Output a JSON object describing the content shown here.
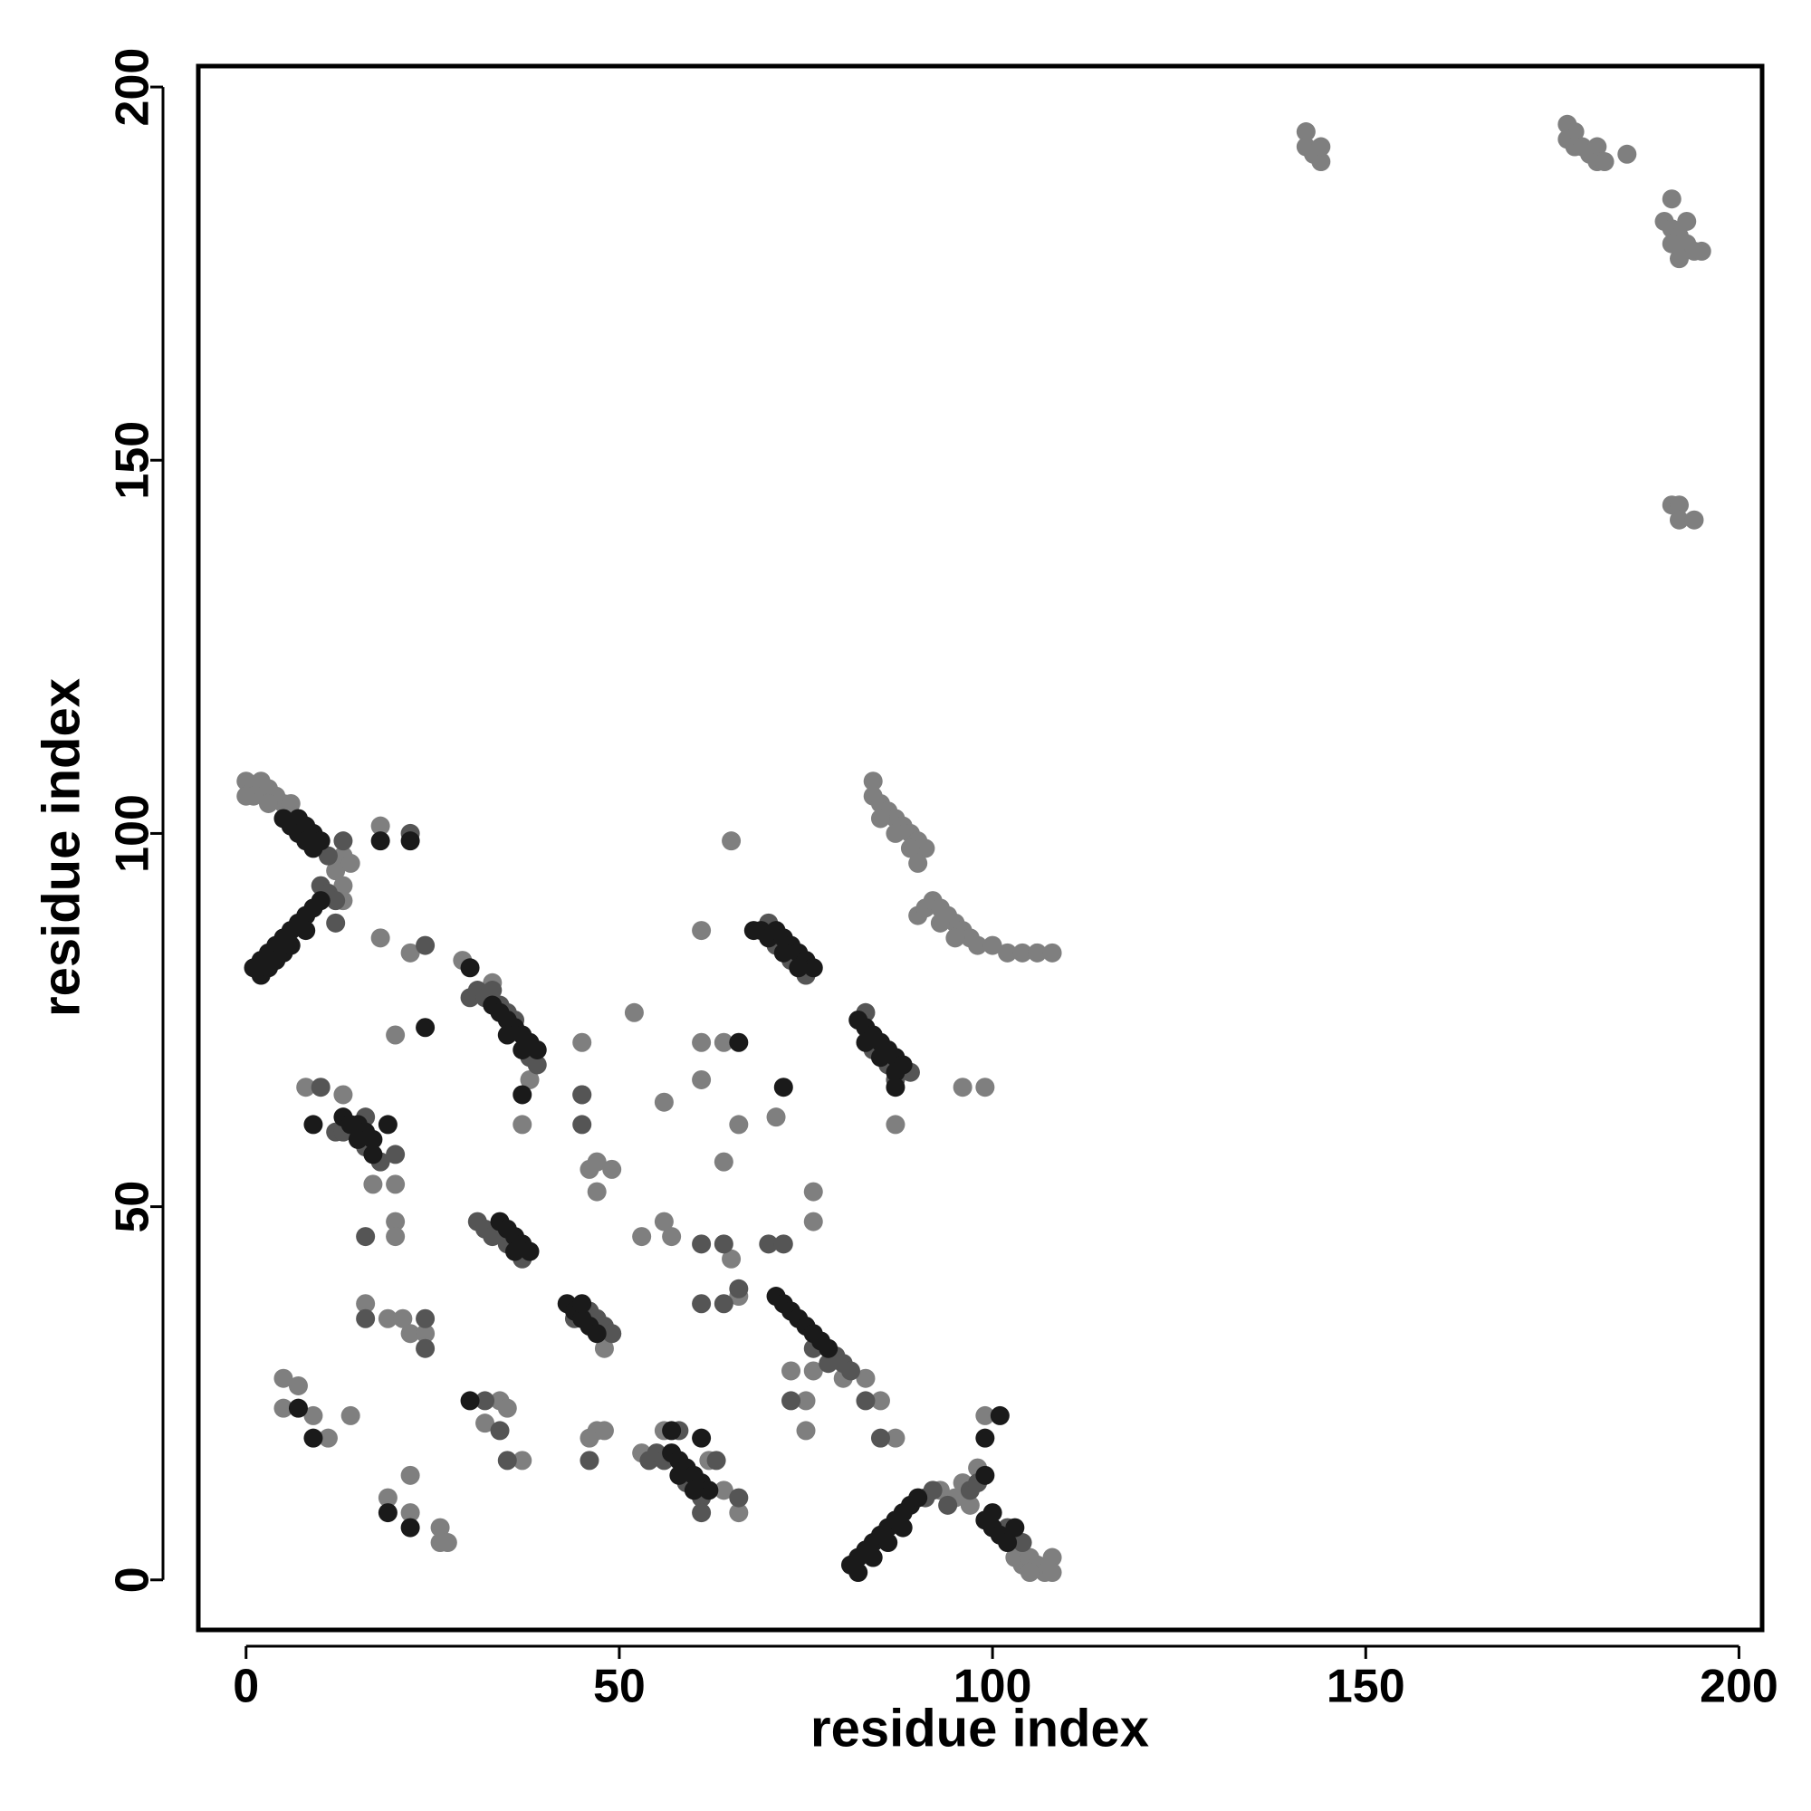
{
  "chart_data": {
    "type": "scatter",
    "xlabel": "residue index",
    "ylabel": "residue index",
    "xlim": [
      -6.4,
      203.1
    ],
    "ylim": [
      -6.7,
      202.8
    ],
    "xticks": [
      0,
      50,
      100,
      150,
      200
    ],
    "yticks": [
      0,
      50,
      100,
      150,
      200
    ],
    "series": [
      {
        "color": "#7f7f7f",
        "x": [
          0,
          1,
          2,
          3,
          4,
          5,
          1,
          3,
          6,
          0,
          13,
          12,
          13,
          14,
          13,
          84,
          84,
          85,
          86,
          87,
          88,
          89,
          90,
          91,
          85,
          87,
          89,
          90,
          90,
          91,
          92,
          93,
          94,
          95,
          96,
          97,
          98,
          100,
          102,
          104,
          106,
          108,
          93,
          95,
          142,
          142,
          143,
          144,
          144,
          177,
          178,
          177,
          178,
          179,
          180,
          181,
          181,
          182,
          185,
          191,
          190,
          191,
          192,
          193,
          194,
          195,
          192,
          193,
          191,
          191,
          192,
          192,
          194,
          103,
          104,
          105,
          106,
          107,
          108,
          108,
          105,
          93,
          95,
          96,
          97,
          18,
          18,
          20,
          22,
          29,
          33,
          37,
          38,
          45,
          46,
          47,
          49,
          47,
          52,
          56,
          61,
          61,
          64,
          71,
          66,
          65,
          61,
          64,
          76,
          76,
          53,
          56,
          57,
          65,
          66,
          8,
          13,
          17,
          20,
          20,
          20,
          16,
          19,
          21,
          22,
          24,
          5,
          7,
          5,
          9,
          11,
          14,
          19,
          22,
          22,
          26,
          26,
          27,
          34,
          35,
          32,
          37,
          46,
          47,
          48,
          56,
          53,
          66,
          75,
          75,
          73,
          76,
          80,
          83,
          85,
          87,
          99,
          98,
          96,
          99,
          87,
          45,
          48,
          49,
          62,
          64
        ],
        "values": [
          107,
          106,
          107,
          106,
          105,
          104,
          105,
          104,
          104,
          105,
          97,
          95,
          93,
          96,
          91,
          107,
          105,
          104,
          103,
          102,
          101,
          100,
          99,
          98,
          102,
          100,
          98,
          96,
          89,
          90,
          91,
          90,
          89,
          88,
          87,
          86,
          85,
          85,
          84,
          84,
          84,
          84,
          88,
          86,
          194,
          192,
          191,
          190,
          192,
          195,
          194,
          193,
          192,
          192,
          191,
          192,
          190,
          190,
          191,
          185,
          182,
          181,
          180,
          179,
          178,
          178,
          177,
          182,
          179,
          144,
          144,
          142,
          142,
          3,
          2,
          3,
          2,
          1,
          3,
          1,
          1,
          12,
          11,
          13,
          10,
          101,
          86,
          73,
          84,
          83,
          80,
          61,
          67,
          72,
          55,
          56,
          55,
          52,
          76,
          64,
          72,
          67,
          72,
          62,
          61,
          99,
          87,
          56,
          52,
          48,
          46,
          48,
          46,
          43,
          38,
          66,
          65,
          53,
          53,
          48,
          46,
          37,
          35,
          35,
          33,
          33,
          27,
          26,
          23,
          22,
          19,
          22,
          11,
          9,
          14,
          7,
          5,
          5,
          24,
          23,
          21,
          16,
          19,
          20,
          20,
          20,
          17,
          9,
          24,
          20,
          28,
          28,
          27,
          27,
          24,
          19,
          22,
          15,
          66,
          66,
          61,
          65,
          31,
          33,
          16,
          12
        ]
      },
      {
        "color": "#555555",
        "x": [
          11,
          10,
          11,
          12,
          12,
          13,
          30,
          31,
          32,
          33,
          34,
          35,
          36,
          38,
          39,
          70,
          71,
          73,
          75,
          83,
          86,
          89,
          84,
          12,
          13,
          16,
          18,
          16,
          10,
          31,
          32,
          33,
          35,
          37,
          46,
          47,
          48,
          49,
          44,
          79,
          80,
          81,
          76,
          78,
          54,
          55,
          56,
          59,
          61,
          63,
          91,
          92,
          94,
          97,
          98,
          102,
          104,
          20,
          16,
          45,
          45,
          64,
          61,
          70,
          72,
          61,
          64,
          24,
          24,
          16,
          32,
          34,
          35,
          46,
          66,
          61,
          73,
          83,
          85,
          58,
          22,
          24,
          66,
          87
        ],
        "values": [
          97,
          93,
          92,
          91,
          88,
          99,
          78,
          79,
          78,
          79,
          77,
          76,
          75,
          70,
          69,
          88,
          85,
          83,
          81,
          76,
          69,
          68,
          71,
          60,
          60,
          58,
          56,
          62,
          66,
          48,
          47,
          46,
          45,
          43,
          36,
          35,
          34,
          33,
          35,
          30,
          29,
          28,
          31,
          29,
          16,
          17,
          16,
          13,
          11,
          16,
          11,
          12,
          10,
          12,
          13,
          7,
          5,
          57,
          46,
          65,
          61,
          45,
          45,
          45,
          45,
          37,
          37,
          35,
          31,
          35,
          24,
          20,
          16,
          16,
          11,
          9,
          24,
          24,
          19,
          20,
          100,
          85,
          39,
          67
        ]
      },
      {
        "color": "#1a1a1a",
        "x": [
          5,
          6,
          7,
          7,
          8,
          8,
          9,
          9,
          10,
          1,
          2,
          2,
          3,
          3,
          4,
          4,
          5,
          5,
          6,
          6,
          7,
          8,
          8,
          9,
          10,
          33,
          34,
          35,
          36,
          37,
          38,
          39,
          35,
          37,
          68,
          69,
          70,
          71,
          72,
          73,
          74,
          75,
          76,
          72,
          74,
          82,
          83,
          84,
          85,
          86,
          87,
          88,
          83,
          85,
          87,
          87,
          13,
          14,
          15,
          16,
          17,
          17,
          15,
          9,
          34,
          35,
          36,
          37,
          38,
          36,
          43,
          44,
          45,
          46,
          47,
          45,
          71,
          72,
          73,
          74,
          75,
          76,
          77,
          78,
          57,
          58,
          59,
          60,
          61,
          62,
          58,
          60,
          81,
          82,
          83,
          84,
          85,
          86,
          87,
          88,
          89,
          90,
          82,
          84,
          86,
          88,
          99,
          100,
          101,
          102,
          103,
          100,
          18,
          22,
          19,
          24,
          66,
          72,
          99,
          99,
          101,
          19,
          22,
          7,
          9,
          30,
          57,
          61,
          37,
          30
        ],
        "values": [
          102,
          101,
          102,
          100,
          101,
          99,
          100,
          98,
          99,
          82,
          83,
          81,
          84,
          82,
          85,
          83,
          86,
          84,
          87,
          85,
          88,
          89,
          87,
          90,
          91,
          77,
          76,
          75,
          74,
          73,
          72,
          71,
          73,
          71,
          87,
          87,
          86,
          87,
          86,
          85,
          84,
          83,
          82,
          84,
          82,
          75,
          74,
          73,
          72,
          71,
          70,
          69,
          72,
          70,
          68,
          66,
          62,
          61,
          61,
          60,
          59,
          57,
          59,
          61,
          48,
          47,
          46,
          45,
          44,
          44,
          37,
          36,
          35,
          34,
          33,
          37,
          38,
          37,
          36,
          35,
          34,
          33,
          32,
          31,
          17,
          16,
          15,
          14,
          13,
          12,
          14,
          12,
          2,
          3,
          4,
          5,
          6,
          7,
          8,
          9,
          10,
          11,
          1,
          3,
          5,
          7,
          8,
          7,
          6,
          5,
          7,
          9,
          99,
          99,
          61,
          74,
          72,
          66,
          14,
          19,
          22,
          9,
          7,
          23,
          19,
          24,
          20,
          19,
          65,
          82
        ]
      }
    ]
  }
}
